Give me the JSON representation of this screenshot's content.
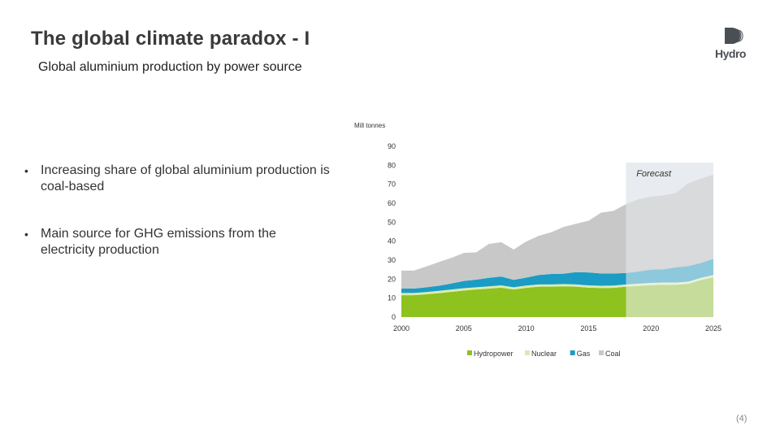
{
  "slide": {
    "title": "The global climate paradox - I",
    "subtitle": "Global aluminium production by power source",
    "logo_text": "Hydro",
    "page_number": "(4)",
    "bullets": [
      "Increasing share of global aluminium production is coal-based",
      "Main source for GHG emissions from the electricity production"
    ]
  },
  "chart_data": {
    "type": "area",
    "stacked": true,
    "ylabel": "Mill tonnes",
    "ylim": [
      0,
      90
    ],
    "yticks": [
      0,
      10,
      20,
      30,
      40,
      50,
      60,
      70,
      80,
      90
    ],
    "xticks": [
      2000,
      2005,
      2010,
      2015,
      2020,
      2025
    ],
    "x": [
      2000,
      2001,
      2002,
      2003,
      2004,
      2005,
      2006,
      2007,
      2008,
      2009,
      2010,
      2011,
      2012,
      2013,
      2014,
      2015,
      2016,
      2017,
      2018,
      2019,
      2020,
      2021,
      2022,
      2023,
      2024,
      2025
    ],
    "forecast_start": 2018,
    "forecast_label": "Forecast",
    "legend_position": "bottom",
    "colors": {
      "Hydropower": "#8dc21f",
      "Nuclear": "#d9ecb0",
      "Gas": "#1b9cc4",
      "Coal": "#c8c8c8",
      "Hydropower_forecast": "#c5dc9a",
      "Nuclear_forecast": "#e9f2da",
      "Gas_forecast": "#8ec8dc",
      "Coal_forecast": "#d8dadc",
      "forecast_band": "#e8ebef"
    },
    "series": [
      {
        "name": "Hydropower",
        "values": [
          11.5,
          11.5,
          12.0,
          12.6,
          13.3,
          14.0,
          14.5,
          15.0,
          15.5,
          14.5,
          15.4,
          16.0,
          16.0,
          16.2,
          16.0,
          15.5,
          15.3,
          15.4,
          16.0,
          16.4,
          16.8,
          17.0,
          17.0,
          17.5,
          19.5,
          21.0
        ]
      },
      {
        "name": "Nuclear",
        "values": [
          1.2,
          1.2,
          1.2,
          1.2,
          1.2,
          1.2,
          1.2,
          1.2,
          1.2,
          1.2,
          1.2,
          1.2,
          1.2,
          1.2,
          1.2,
          1.2,
          1.2,
          1.2,
          1.2,
          1.2,
          1.2,
          1.2,
          1.2,
          1.2,
          1.2,
          1.2
        ]
      },
      {
        "name": "Gas",
        "values": [
          2.3,
          2.3,
          2.5,
          2.7,
          3.2,
          3.8,
          4.0,
          4.5,
          4.7,
          3.9,
          4.2,
          5.0,
          5.5,
          5.5,
          6.5,
          6.8,
          6.5,
          6.4,
          6.0,
          6.4,
          7.0,
          7.0,
          8.0,
          8.2,
          7.8,
          8.5
        ]
      },
      {
        "name": "Coal",
        "values": [
          9.5,
          9.5,
          11.0,
          12.5,
          13.5,
          14.8,
          14.4,
          17.8,
          18.1,
          16.0,
          19.0,
          20.6,
          22.0,
          24.6,
          25.5,
          27.3,
          32.0,
          33.0,
          36.3,
          38.1,
          38.5,
          39.0,
          39.2,
          43.6,
          44.5,
          44.3
        ]
      }
    ]
  }
}
